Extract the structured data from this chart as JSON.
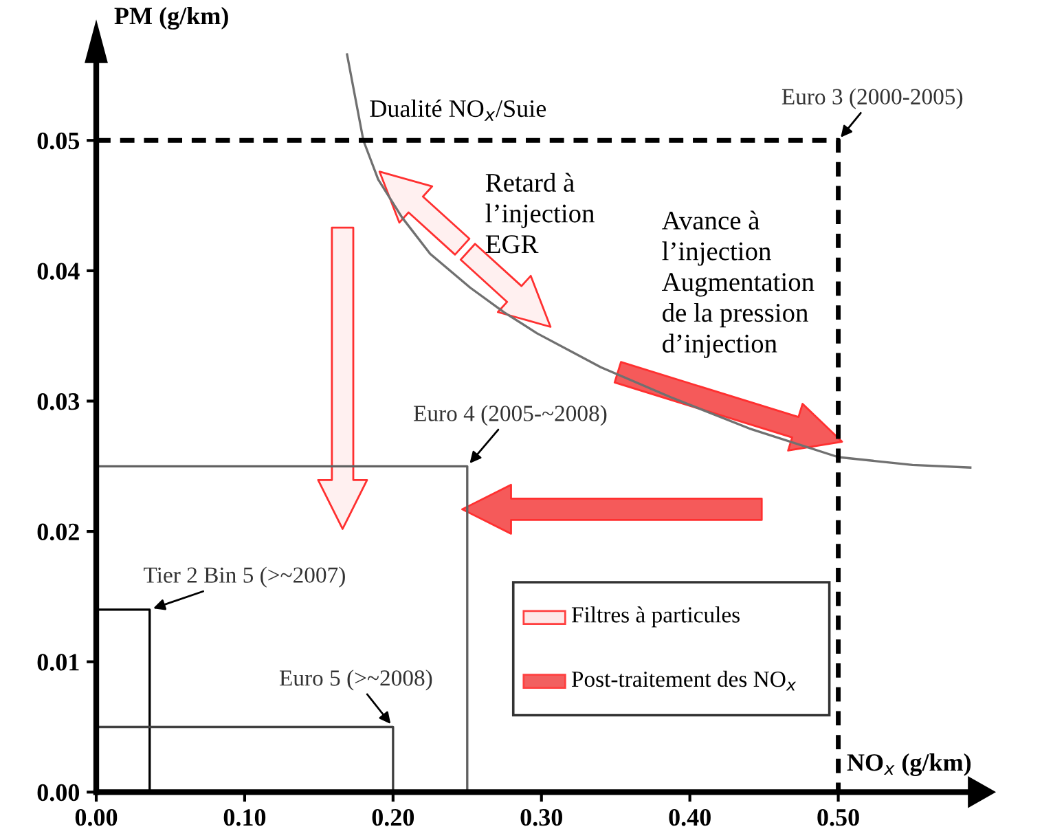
{
  "chart_data": {
    "type": "line",
    "xlabel": "NO$_{x}$ (g/km)",
    "ylabel": "PM (g/km)",
    "xlim": [
      0,
      0.6
    ],
    "ylim": [
      0,
      0.058
    ],
    "xticks": [
      {
        "value": 0,
        "label": "0.00"
      },
      {
        "value": 0.1,
        "label": "0.10"
      },
      {
        "value": 0.2,
        "label": "0.20"
      },
      {
        "value": 0.3,
        "label": "0.30"
      },
      {
        "value": 0.4,
        "label": "0.40"
      },
      {
        "value": 0.5,
        "label": "0.50"
      }
    ],
    "yticks": [
      {
        "value": 0,
        "label": "0.00"
      },
      {
        "value": 0.01,
        "label": "0.01"
      },
      {
        "value": 0.02,
        "label": "0.02"
      },
      {
        "value": 0.03,
        "label": "0.03"
      },
      {
        "value": 0.04,
        "label": "0.04"
      },
      {
        "value": 0.05,
        "label": "0.05"
      }
    ],
    "series": [
      {
        "color": "#707070",
        "x": [
          0.169,
          0.18,
          0.19,
          0.206,
          0.225,
          0.252,
          0.275,
          0.297,
          0.34,
          0.387,
          0.44,
          0.5,
          0.55,
          0.589
        ],
        "values": [
          0.0566,
          0.05,
          0.047,
          0.0441,
          0.0413,
          0.0387,
          0.0368,
          0.0352,
          0.0326,
          0.0303,
          0.0279,
          0.0257,
          0.0251,
          0.0249
        ]
      },
      {
        "name": "Euro 3 (2000-2005)",
        "color": "#000000",
        "line_style": "dashed",
        "x": [
          0,
          0.5,
          0.5
        ],
        "values": [
          0.05,
          0.05,
          0
        ]
      },
      {
        "name": "Euro 4 (2005-~2008)",
        "color": "#606060",
        "x": [
          0,
          0.25,
          0.25
        ],
        "values": [
          0.025,
          0.025,
          0
        ]
      },
      {
        "name": "Tier 2 Bin 5 (>~2007)",
        "color": "#000000",
        "x": [
          0,
          0.036,
          0.036
        ],
        "values": [
          0.014,
          0.014,
          0
        ]
      },
      {
        "name": "Euro 5 (>~2008)",
        "color": "#404040",
        "x": [
          0,
          0.2,
          0.2
        ],
        "values": [
          0.005,
          0.005,
          0
        ]
      }
    ],
    "annotations": [
      "Dualité NO$_{x}$/Suie",
      "Retard à\nl’injection\nEGR",
      "Avance à\nl’injection\nAugmentation\nde la pression\nd’injection",
      "Filtres à particules",
      "Post-traitement des NO$_{x}$"
    ]
  }
}
